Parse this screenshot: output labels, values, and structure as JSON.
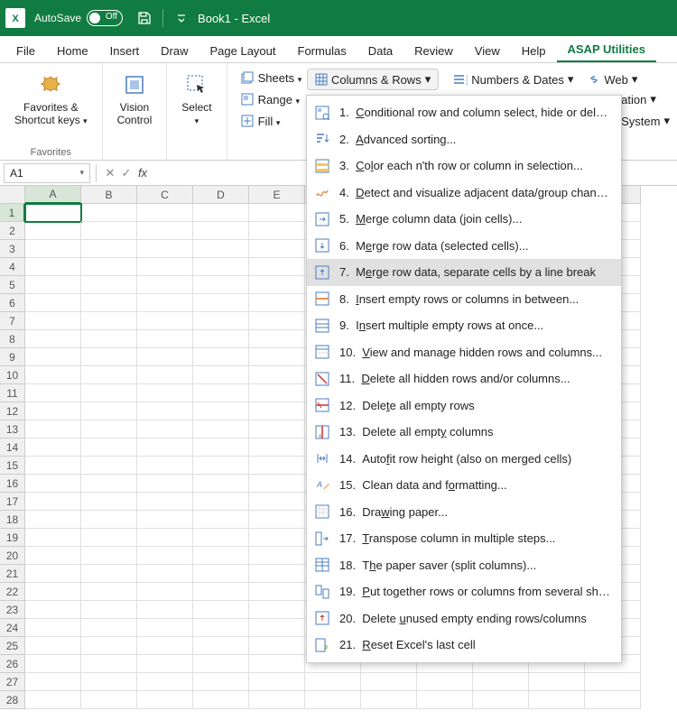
{
  "colors": {
    "brand": "#107c41",
    "hover": "#e1e1e1",
    "border": "#cccccc",
    "grid": "#e0e0e0",
    "head_bg": "#f0f0f0"
  },
  "titlebar": {
    "autosave_label": "AutoSave",
    "autosave_state": "Off",
    "document_title": "Book1  -  Excel"
  },
  "tabs": [
    {
      "label": "File"
    },
    {
      "label": "Home"
    },
    {
      "label": "Insert"
    },
    {
      "label": "Draw"
    },
    {
      "label": "Page Layout"
    },
    {
      "label": "Formulas"
    },
    {
      "label": "Data"
    },
    {
      "label": "Review"
    },
    {
      "label": "View"
    },
    {
      "label": "Help"
    },
    {
      "label": "ASAP Utilities",
      "active": true
    }
  ],
  "ribbon": {
    "groups": [
      {
        "label": "Favorites",
        "big": {
          "label": "Favorites &\nShortcut keys",
          "icon": "star"
        }
      },
      {
        "big": {
          "label": "Vision\nControl",
          "icon": "vision"
        }
      },
      {
        "big": {
          "label": "Select",
          "icon": "select"
        }
      }
    ],
    "stack": [
      {
        "label": "Sheets",
        "icon": "sheets"
      },
      {
        "label": "Range",
        "icon": "range"
      },
      {
        "label": "Fill",
        "icon": "fill"
      }
    ],
    "top_buttons": [
      {
        "label": "Columns & Rows",
        "icon": "columns",
        "open": true
      },
      {
        "label": "Numbers & Dates",
        "icon": "numbers"
      },
      {
        "label": "Web",
        "icon": "web"
      }
    ],
    "right_items": [
      {
        "label": "formation"
      },
      {
        "label": "le & System"
      }
    ]
  },
  "formula_bar": {
    "name_box": "A1",
    "fx_label": "fx"
  },
  "grid": {
    "columns": [
      "A",
      "B",
      "C",
      "D",
      "E",
      "",
      "",
      "",
      "",
      "",
      "K"
    ],
    "rows": 28,
    "selected_row": 1,
    "selected_col": 0,
    "active_cell": "A1"
  },
  "dropdown": {
    "items": [
      {
        "n": "1.",
        "u": "C",
        "rest": "onditional row and column select, hide or delete...",
        "icon": "cond"
      },
      {
        "n": "2.",
        "u": "A",
        "rest": "dvanced sorting...",
        "icon": "sort"
      },
      {
        "n": "3.",
        "u": "C",
        "rest2": "o",
        "u2": "l",
        "rest": "or each n'th row or column in selection...",
        "icon": "colornth"
      },
      {
        "n": "4.",
        "u": "D",
        "rest": "etect and visualize adjacent data/group changes...",
        "icon": "detect"
      },
      {
        "n": "5.",
        "u": "M",
        "rest": "erge column data (join cells)...",
        "icon": "mergecol"
      },
      {
        "n": "6.",
        "pre": "M",
        "u": "e",
        "rest": "rge row data (selected cells)...",
        "icon": "mergerow"
      },
      {
        "n": "7.",
        "pre": "M",
        "u": "e",
        "rest2": "r",
        "rest": "ge row data, separate cells by a line break",
        "icon": "mergerowlb",
        "hover": true
      },
      {
        "n": "8.",
        "u": "I",
        "rest": "nsert empty rows or columns in between...",
        "icon": "insertbetween"
      },
      {
        "n": "9.",
        "pre": "I",
        "u": "n",
        "rest": "sert multiple empty rows at once...",
        "icon": "insertmulti"
      },
      {
        "n": "10.",
        "u": "V",
        "rest": "iew and manage hidden rows and columns...",
        "icon": "viewhidden"
      },
      {
        "n": "11.",
        "u": "D",
        "rest2": "e",
        "rest": "lete all hidden rows and/or columns...",
        "icon": "delhidden"
      },
      {
        "n": "12.",
        "pre": "Dele",
        "u": "t",
        "rest": "e all empty rows",
        "icon": "delemptyrows"
      },
      {
        "n": "13.",
        "pre": "Delete all empt",
        "u": "y",
        "rest": " columns",
        "icon": "delemptycols"
      },
      {
        "n": "14.",
        "pre": "Auto",
        "u": "f",
        "rest": "it row height (also on merged cells)",
        "icon": "autofit"
      },
      {
        "n": "15.",
        "pre": "Clean data and f",
        "u": "o",
        "rest": "rmatting...",
        "icon": "clean"
      },
      {
        "n": "16.",
        "pre": "Dra",
        "u": "w",
        "rest": "ing paper...",
        "icon": "drawing"
      },
      {
        "n": "17.",
        "u": "T",
        "rest": "ranspose column in multiple steps...",
        "icon": "transpose"
      },
      {
        "n": "18.",
        "pre": "T",
        "u": "h",
        "rest": "e paper saver (split columns)...",
        "icon": "papersaver"
      },
      {
        "n": "19.",
        "u": "P",
        "rest": "ut together rows or columns from several sheets...",
        "icon": "puttogether"
      },
      {
        "n": "20.",
        "pre": "Delete ",
        "u": "u",
        "rest": "nused empty ending rows/columns",
        "icon": "delunused"
      },
      {
        "n": "21.",
        "u": "R",
        "rest": "eset Excel's last cell",
        "icon": "reset"
      }
    ]
  }
}
